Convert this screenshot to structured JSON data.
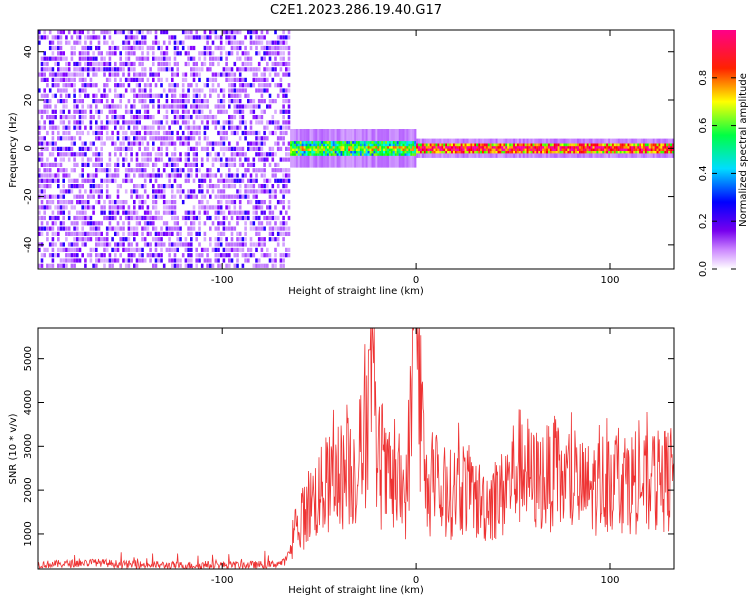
{
  "title": "C2E1.2023.286.19.40.G17",
  "chart_data": [
    {
      "type": "heatmap",
      "xlabel": "Height of straight line (km)",
      "ylabel": "Frequency (Hz)",
      "xlim": [
        -195,
        133
      ],
      "ylim": [
        -50,
        49
      ],
      "xticks": [
        -100,
        0,
        100
      ],
      "yticks": [
        -40,
        -20,
        0,
        20,
        40
      ],
      "colorbar": {
        "label": "Normalized spectral amplitude",
        "range": [
          0,
          1
        ],
        "ticks": [
          0.0,
          0.2,
          0.4,
          0.6,
          0.8
        ],
        "tick_labels": [
          "0.0",
          "0.2",
          "0.4",
          "0.6",
          "0.8"
        ],
        "colormap": [
          "#ffffff",
          "#8800ff",
          "#0000ff",
          "#00ffff",
          "#00ff00",
          "#ffff00",
          "#ff0000",
          "#ff00aa"
        ]
      },
      "regions": [
        {
          "x_range": [
            -195,
            -65
          ],
          "description": "broadband noise",
          "typical_amplitude": 0.15
        },
        {
          "x_range": [
            -65,
            0
          ],
          "description": "signal band near 0 Hz",
          "freq_range": [
            -3,
            3
          ],
          "typical_amplitude": 0.5
        },
        {
          "x_range": [
            0,
            133
          ],
          "description": "narrow carrier near 0 Hz",
          "freq_range": [
            -2,
            2
          ],
          "typical_amplitude": 0.75
        }
      ]
    },
    {
      "type": "line",
      "xlabel": "Height of straight line (km)",
      "ylabel": "SNR (10 * v/v)",
      "xlim": [
        -195,
        133
      ],
      "ylim": [
        200,
        5700
      ],
      "xticks": [
        -100,
        0,
        100
      ],
      "yticks": [
        1000,
        2000,
        3000,
        4000,
        5000
      ],
      "color": "#ee3333",
      "series": [
        {
          "x": [
            -195,
            -180,
            -165,
            -150,
            -135,
            -120,
            -105,
            -90,
            -75,
            -68,
            -65,
            -60,
            -55,
            -50,
            -45,
            -40,
            -35,
            -30,
            -26,
            -24,
            -20,
            -15,
            -10,
            -5,
            0,
            5,
            10,
            15,
            20,
            25,
            30,
            35,
            40,
            45,
            50,
            55,
            60,
            70,
            80,
            90,
            100,
            110,
            120,
            133
          ],
          "values": [
            300,
            320,
            350,
            300,
            290,
            280,
            290,
            290,
            300,
            350,
            600,
            1200,
            1700,
            1900,
            2100,
            2300,
            2400,
            2500,
            3200,
            5200,
            2500,
            2200,
            2000,
            1900,
            5700,
            2000,
            1900,
            1800,
            2000,
            2100,
            1800,
            1700,
            1800,
            1900,
            2400,
            2600,
            2200,
            2300,
            2100,
            2000,
            2300,
            2200,
            2100,
            2300
          ]
        }
      ]
    }
  ]
}
